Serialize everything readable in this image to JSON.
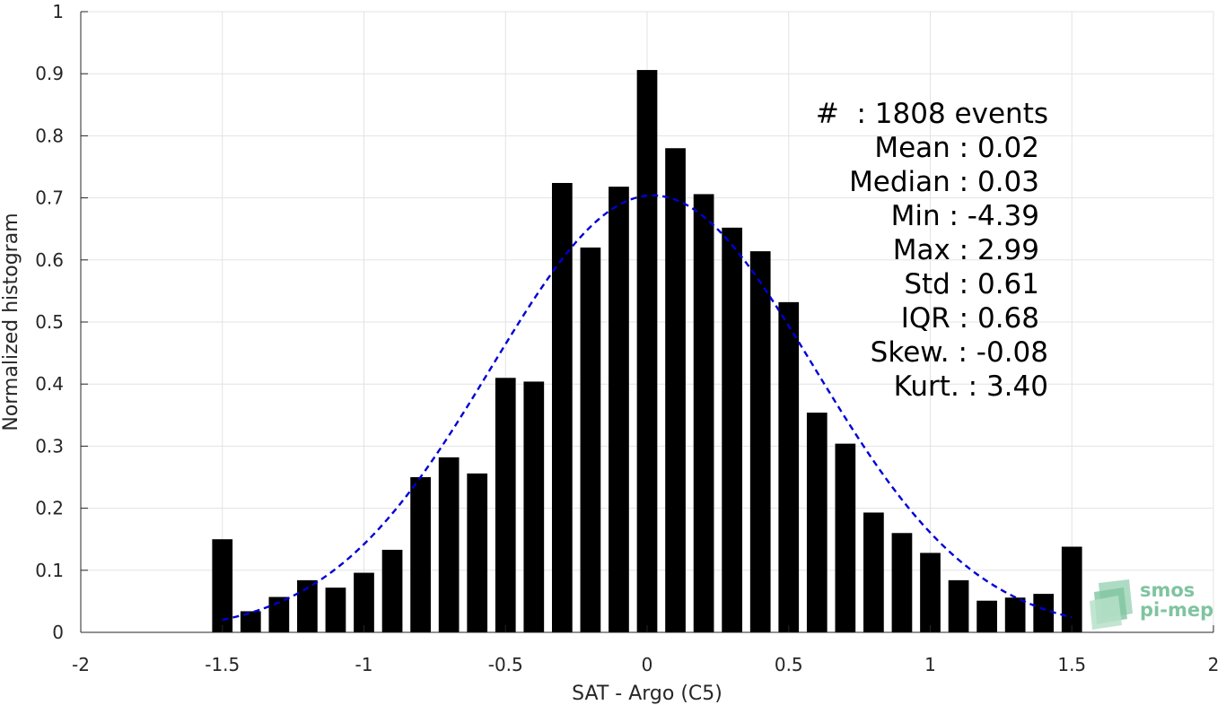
{
  "chart_data": {
    "type": "bar",
    "xlabel": "SAT - Argo (C5)",
    "ylabel": "Normalized histogram",
    "xlim": [
      -2,
      2
    ],
    "ylim": [
      0,
      1
    ],
    "xticks": [
      "-2",
      "-1.5",
      "-1",
      "-0.5",
      "0",
      "0.5",
      "1",
      "1.5",
      "2"
    ],
    "yticks": [
      "0",
      "0.1",
      "0.2",
      "0.3",
      "0.4",
      "0.5",
      "0.6",
      "0.7",
      "0.8",
      "0.9",
      "1"
    ],
    "grid": true,
    "bin_width": 0.1,
    "x": [
      -1.5,
      -1.4,
      -1.3,
      -1.2,
      -1.1,
      -1.0,
      -0.9,
      -0.8,
      -0.7,
      -0.6,
      -0.5,
      -0.4,
      -0.3,
      -0.2,
      -0.1,
      0.0,
      0.1,
      0.2,
      0.3,
      0.4,
      0.5,
      0.6,
      0.7,
      0.8,
      0.9,
      1.0,
      1.1,
      1.2,
      1.3,
      1.4,
      1.5
    ],
    "values": [
      0.15,
      0.034,
      0.057,
      0.084,
      0.072,
      0.096,
      0.133,
      0.25,
      0.282,
      0.256,
      0.41,
      0.404,
      0.724,
      0.62,
      0.718,
      0.906,
      0.78,
      0.706,
      0.652,
      0.614,
      0.532,
      0.354,
      0.304,
      0.193,
      0.16,
      0.128,
      0.084,
      0.051,
      0.056,
      0.062,
      0.138
    ],
    "bar_color": "#000000",
    "fit_curve": {
      "style": "dashed",
      "color": "#0000d6",
      "mean": 0.02,
      "std": 0.57,
      "peak": 0.704,
      "x_range": [
        -1.5,
        1.5
      ]
    },
    "annotations": [
      "#  : 1808 events",
      "Mean : 0.02",
      "Median : 0.03",
      "Min : -4.39",
      "Max : 2.99",
      "Std : 0.61",
      "IQR : 0.68",
      "Skew. : -0.08",
      "Kurt. : 3.40"
    ]
  },
  "logo": {
    "line1": "smos",
    "line2": "pi-mep",
    "color": "#7fc4a0"
  }
}
